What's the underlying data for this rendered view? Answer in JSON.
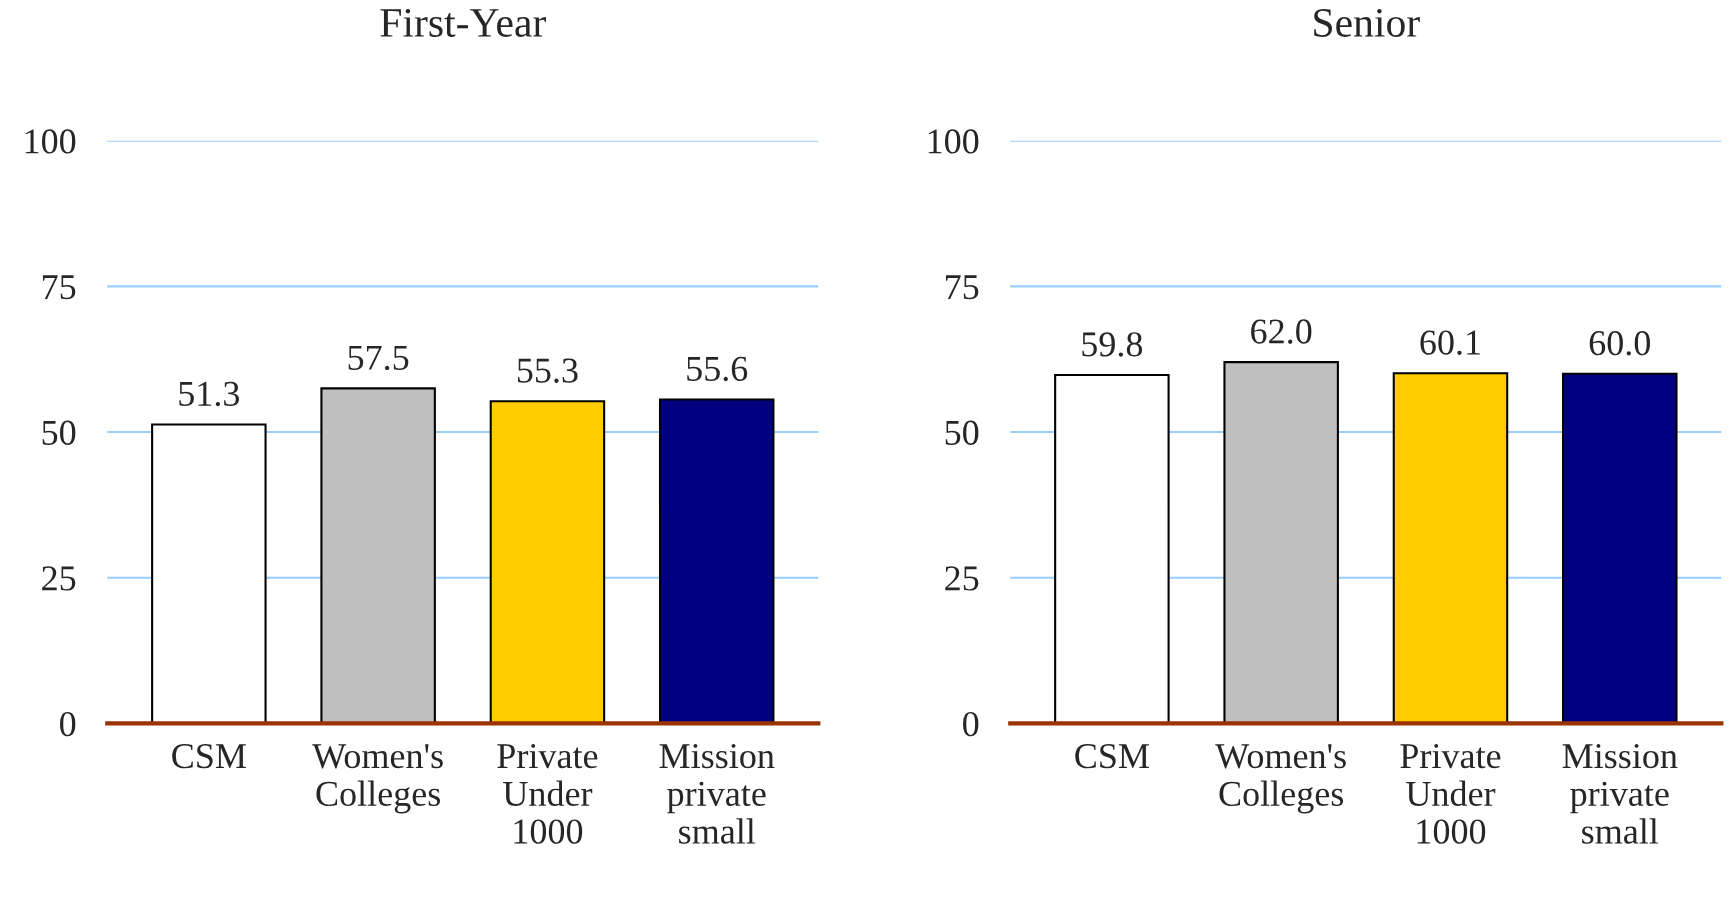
{
  "chart_data": [
    {
      "type": "bar",
      "title": "First-Year",
      "categories": [
        "CSM",
        "Women's\nColleges",
        "Private\nUnder\n1000",
        "Mission\nprivate\nsmall"
      ],
      "values": [
        51.3,
        57.5,
        55.3,
        55.6
      ],
      "colors": [
        "#ffffff",
        "#bfbfbf",
        "#ffcc00",
        "#000080"
      ],
      "value_labels": [
        "51.3",
        "57.5",
        "55.3",
        "55.6"
      ],
      "ylim": [
        0,
        100
      ],
      "yticks": [
        0,
        25,
        50,
        75,
        100
      ],
      "grid": "y",
      "legend": false
    },
    {
      "type": "bar",
      "title": "Senior",
      "categories": [
        "CSM",
        "Women's\nColleges",
        "Private\nUnder\n1000",
        "Mission\nprivate\nsmall"
      ],
      "values": [
        59.8,
        62.0,
        60.1,
        60.0
      ],
      "colors": [
        "#ffffff",
        "#bfbfbf",
        "#ffcc00",
        "#000080"
      ],
      "value_labels": [
        "59.8",
        "62.0",
        "60.1",
        "60.0"
      ],
      "ylim": [
        0,
        100
      ],
      "yticks": [
        0,
        25,
        50,
        75,
        100
      ],
      "grid": "y",
      "legend": false
    }
  ]
}
